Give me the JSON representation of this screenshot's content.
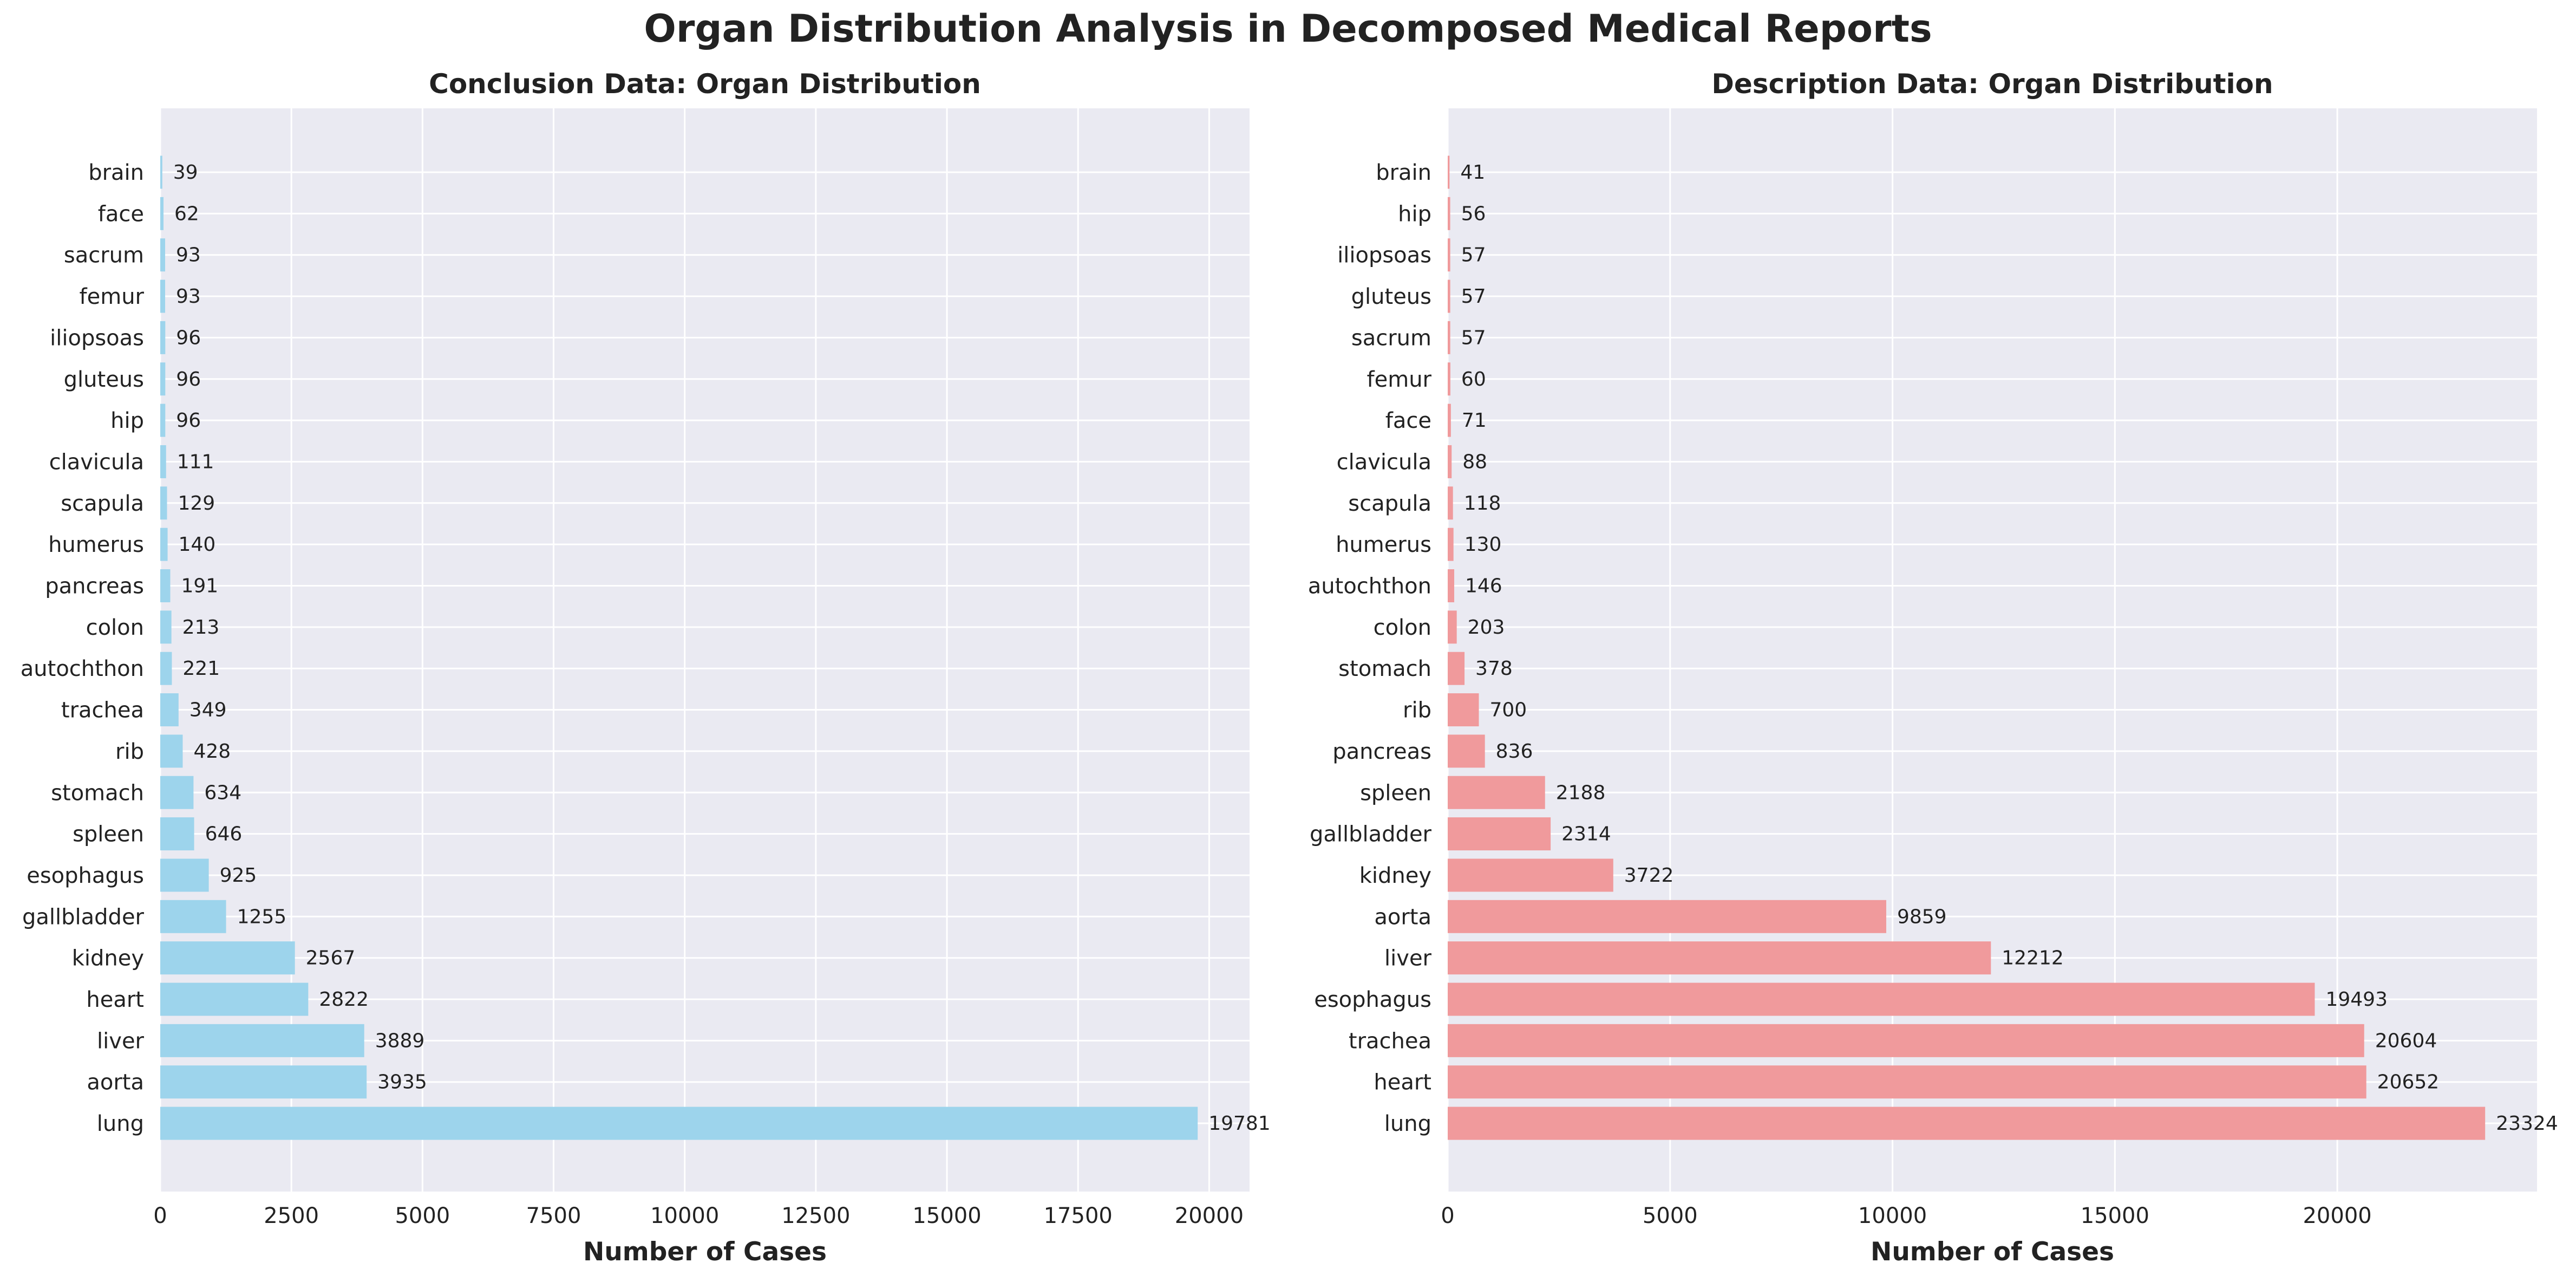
{
  "suptitle": "Organ Distribution Analysis in Decomposed Medical Reports",
  "chart_data": [
    {
      "type": "bar",
      "orientation": "horizontal",
      "title": "Conclusion Data: Organ Distribution",
      "xlabel": "Number of Cases",
      "ylabel": "",
      "xlim": [
        0,
        20770
      ],
      "xticks": [
        "0",
        "2500",
        "5000",
        "7500",
        "10000",
        "12500",
        "15000",
        "17500",
        "20000"
      ],
      "bar_color": "#9dd4ec",
      "grid": true,
      "categories": [
        "brain",
        "face",
        "sacrum",
        "femur",
        "iliopsoas",
        "gluteus",
        "hip",
        "clavicula",
        "scapula",
        "humerus",
        "pancreas",
        "colon",
        "autochthon",
        "trachea",
        "rib",
        "stomach",
        "spleen",
        "esophagus",
        "gallbladder",
        "kidney",
        "heart",
        "liver",
        "aorta",
        "lung"
      ],
      "values": [
        39,
        62,
        93,
        93,
        96,
        96,
        96,
        111,
        129,
        140,
        191,
        213,
        221,
        349,
        428,
        634,
        646,
        925,
        1255,
        2567,
        2822,
        3889,
        3935,
        19781
      ]
    },
    {
      "type": "bar",
      "orientation": "horizontal",
      "title": "Description Data: Organ Distribution",
      "xlabel": "Number of Cases",
      "ylabel": "",
      "xlim": [
        0,
        24490
      ],
      "xticks": [
        "0",
        "5000",
        "10000",
        "15000",
        "20000"
      ],
      "bar_color": "#f09a9c",
      "grid": true,
      "categories": [
        "brain",
        "hip",
        "iliopsoas",
        "gluteus",
        "sacrum",
        "femur",
        "face",
        "clavicula",
        "scapula",
        "humerus",
        "autochthon",
        "colon",
        "stomach",
        "rib",
        "pancreas",
        "spleen",
        "gallbladder",
        "kidney",
        "aorta",
        "liver",
        "esophagus",
        "trachea",
        "heart",
        "lung"
      ],
      "values": [
        41,
        56,
        57,
        57,
        57,
        60,
        71,
        88,
        118,
        130,
        146,
        203,
        378,
        700,
        836,
        2188,
        2314,
        3722,
        9859,
        12212,
        19493,
        20604,
        20652,
        23324
      ]
    }
  ]
}
